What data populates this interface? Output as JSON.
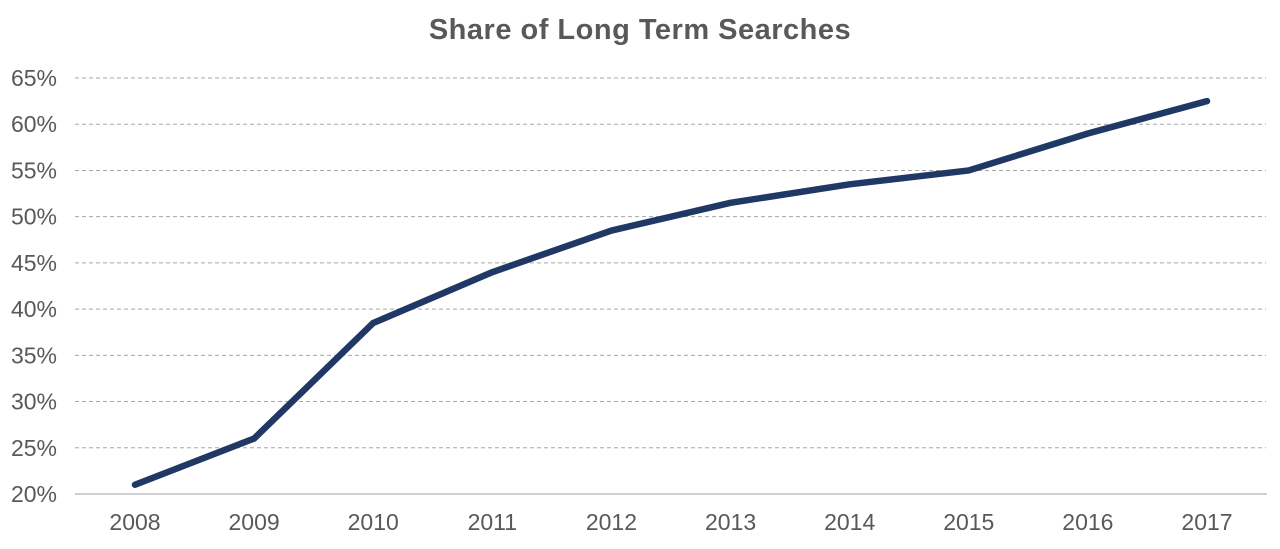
{
  "chart_data": {
    "type": "line",
    "title": "Share of Long Term Searches",
    "categories": [
      "2008",
      "2009",
      "2010",
      "2011",
      "2012",
      "2013",
      "2014",
      "2015",
      "2016",
      "2017"
    ],
    "series": [
      {
        "name": "Share of Long Term Searches",
        "values": [
          21,
          26,
          38.5,
          44,
          48.5,
          51.5,
          53.5,
          55,
          59,
          62.5
        ]
      }
    ],
    "xlabel": "",
    "ylabel": "",
    "ylim": [
      20,
      65
    ],
    "y_tick_step": 5,
    "y_tick_labels": [
      "20%",
      "25%",
      "30%",
      "35%",
      "40%",
      "45%",
      "50%",
      "55%",
      "60%",
      "65%"
    ],
    "grid": "horizontal-dashed",
    "legend_position": "none",
    "colors": {
      "line": "#1f3864",
      "title": "#595959",
      "tick_label": "#595959",
      "gridline": "#a6a6a6",
      "axis_line": "#bfbfbf",
      "background": "#ffffff"
    }
  }
}
